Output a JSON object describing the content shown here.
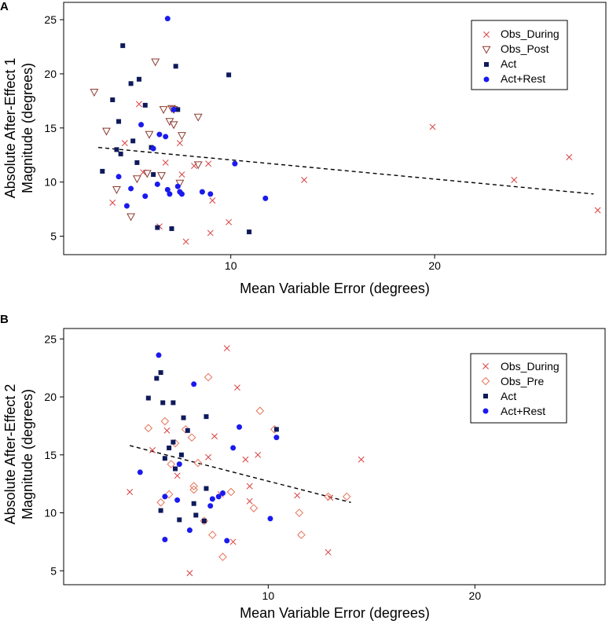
{
  "chart_data": [
    {
      "panel": "A",
      "type": "scatter",
      "xlabel": "Mean Variable Error (degrees)",
      "ylabel_lines": [
        "Absolute After-Effect 1",
        "Magnitude (degrees)"
      ],
      "xlim": [
        1.8,
        28.4
      ],
      "ylim": [
        3.3,
        26.6
      ],
      "xticks": [
        10,
        20
      ],
      "yticks": [
        5,
        10,
        15,
        20,
        25
      ],
      "legend_position": "top-right",
      "trend_line": {
        "x": [
          3.5,
          27.8
        ],
        "y": [
          13.2,
          8.9
        ]
      },
      "series": [
        {
          "name": "Obs_During",
          "marker": "x",
          "color": "#d94040",
          "points": [
            [
              4.2,
              8.1
            ],
            [
              4.8,
              13.6
            ],
            [
              5.5,
              17.2
            ],
            [
              5.7,
              10.9
            ],
            [
              6.5,
              5.9
            ],
            [
              6.8,
              11.8
            ],
            [
              7.5,
              13.6
            ],
            [
              7.6,
              10.7
            ],
            [
              7.8,
              4.5
            ],
            [
              8.2,
              11.5
            ],
            [
              8.9,
              11.7
            ],
            [
              9.0,
              5.3
            ],
            [
              9.1,
              8.3
            ],
            [
              9.9,
              6.3
            ],
            [
              13.6,
              10.2
            ],
            [
              19.9,
              15.1
            ],
            [
              23.9,
              10.2
            ],
            [
              26.6,
              12.3
            ],
            [
              28.0,
              7.4
            ]
          ]
        },
        {
          "name": "Obs_Post",
          "marker": "triangle-down",
          "color": "#8b3a2e",
          "points": [
            [
              3.3,
              18.3
            ],
            [
              3.9,
              14.7
            ],
            [
              4.4,
              9.3
            ],
            [
              5.1,
              6.8
            ],
            [
              5.4,
              10.3
            ],
            [
              5.9,
              10.8
            ],
            [
              6.0,
              14.4
            ],
            [
              6.3,
              21.1
            ],
            [
              6.6,
              10.6
            ],
            [
              6.7,
              16.7
            ],
            [
              7.0,
              15.6
            ],
            [
              7.1,
              16.8
            ],
            [
              7.2,
              16.7
            ],
            [
              7.2,
              15.3
            ],
            [
              7.5,
              9.9
            ],
            [
              7.6,
              14.3
            ],
            [
              8.4,
              16.0
            ],
            [
              8.4,
              11.6
            ]
          ]
        },
        {
          "name": "Act",
          "marker": "square",
          "color": "#0f1a5c",
          "points": [
            [
              3.7,
              11.0
            ],
            [
              4.2,
              17.6
            ],
            [
              4.5,
              15.6
            ],
            [
              4.6,
              12.6
            ],
            [
              4.7,
              22.6
            ],
            [
              5.1,
              19.1
            ],
            [
              5.2,
              13.8
            ],
            [
              5.4,
              11.8
            ],
            [
              5.5,
              19.5
            ],
            [
              5.8,
              17.1
            ],
            [
              6.1,
              13.2
            ],
            [
              6.2,
              10.7
            ],
            [
              6.4,
              5.8
            ],
            [
              7.1,
              5.7
            ],
            [
              7.3,
              20.7
            ],
            [
              7.4,
              16.7
            ],
            [
              9.9,
              19.9
            ],
            [
              10.9,
              5.4
            ],
            [
              4.4,
              13.0
            ]
          ]
        },
        {
          "name": "Act+Rest",
          "marker": "circle",
          "color": "#1a1aee",
          "points": [
            [
              4.5,
              10.5
            ],
            [
              4.9,
              7.8
            ],
            [
              5.1,
              9.4
            ],
            [
              5.6,
              15.3
            ],
            [
              5.8,
              8.7
            ],
            [
              6.2,
              13.1
            ],
            [
              6.4,
              9.8
            ],
            [
              6.5,
              14.4
            ],
            [
              6.8,
              14.2
            ],
            [
              6.9,
              25.1
            ],
            [
              6.9,
              9.3
            ],
            [
              7.0,
              8.9
            ],
            [
              7.2,
              16.7
            ],
            [
              7.4,
              9.6
            ],
            [
              7.5,
              9.1
            ],
            [
              7.6,
              8.9
            ],
            [
              8.6,
              9.1
            ],
            [
              9.0,
              8.9
            ],
            [
              10.2,
              11.7
            ],
            [
              11.7,
              8.5
            ]
          ]
        }
      ]
    },
    {
      "panel": "B",
      "type": "scatter",
      "xlabel": "Mean Variable Error (degrees)",
      "ylabel_lines": [
        "Absolute After-Effect 2",
        "Magnitude (degrees)"
      ],
      "xlim": [
        0.1,
        26.3
      ],
      "ylim": [
        3.8,
        25.9
      ],
      "xticks": [
        10,
        20
      ],
      "yticks": [
        5,
        10,
        15,
        20,
        25
      ],
      "legend_position": "top-right",
      "trend_line": {
        "x": [
          3.3,
          14.0
        ],
        "y": [
          15.8,
          10.9
        ]
      },
      "series": [
        {
          "name": "Obs_During",
          "marker": "x",
          "color": "#d94040",
          "points": [
            [
              3.3,
              11.8
            ],
            [
              4.4,
              15.4
            ],
            [
              5.1,
              17.1
            ],
            [
              5.6,
              13.2
            ],
            [
              6.2,
              4.8
            ],
            [
              7.1,
              14.8
            ],
            [
              7.4,
              16.6
            ],
            [
              7.7,
              11.6
            ],
            [
              8.0,
              24.2
            ],
            [
              8.3,
              7.5
            ],
            [
              8.5,
              20.8
            ],
            [
              8.9,
              14.6
            ],
            [
              9.1,
              12.3
            ],
            [
              9.1,
              11.0
            ],
            [
              9.5,
              15.0
            ],
            [
              11.4,
              11.5
            ],
            [
              12.9,
              6.6
            ],
            [
              14.5,
              14.6
            ],
            [
              13.0,
              11.3
            ]
          ]
        },
        {
          "name": "Obs_Pre",
          "marker": "diamond",
          "color": "#e8735a",
          "points": [
            [
              4.2,
              17.3
            ],
            [
              4.8,
              10.9
            ],
            [
              5.0,
              17.9
            ],
            [
              5.2,
              11.6
            ],
            [
              5.3,
              14.2
            ],
            [
              6.0,
              17.2
            ],
            [
              6.3,
              16.5
            ],
            [
              6.4,
              12.3
            ],
            [
              6.4,
              12.0
            ],
            [
              6.6,
              14.3
            ],
            [
              6.9,
              9.3
            ],
            [
              7.1,
              21.7
            ],
            [
              7.3,
              8.1
            ],
            [
              7.8,
              6.2
            ],
            [
              8.2,
              11.8
            ],
            [
              9.3,
              10.4
            ],
            [
              9.6,
              18.8
            ],
            [
              10.3,
              17.2
            ],
            [
              11.5,
              10.0
            ],
            [
              11.6,
              8.1
            ],
            [
              12.9,
              11.4
            ],
            [
              13.8,
              11.4
            ],
            [
              5.5,
              16.0
            ]
          ]
        },
        {
          "name": "Act",
          "marker": "square",
          "color": "#0f1a5c",
          "points": [
            [
              4.2,
              19.9
            ],
            [
              4.6,
              21.6
            ],
            [
              4.8,
              22.1
            ],
            [
              4.8,
              10.2
            ],
            [
              4.9,
              19.5
            ],
            [
              5.2,
              15.6
            ],
            [
              5.4,
              19.5
            ],
            [
              5.4,
              16.1
            ],
            [
              5.5,
              13.8
            ],
            [
              5.7,
              9.4
            ],
            [
              5.8,
              15.0
            ],
            [
              5.9,
              18.2
            ],
            [
              6.1,
              17.1
            ],
            [
              6.4,
              10.8
            ],
            [
              6.5,
              9.8
            ],
            [
              6.9,
              9.3
            ],
            [
              7.0,
              18.3
            ],
            [
              7.0,
              12.1
            ],
            [
              5.0,
              14.7
            ],
            [
              10.4,
              17.2
            ]
          ]
        },
        {
          "name": "Act+Rest",
          "marker": "circle",
          "color": "#1a1aee",
          "points": [
            [
              3.8,
              13.5
            ],
            [
              4.7,
              23.6
            ],
            [
              5.0,
              11.4
            ],
            [
              5.0,
              7.7
            ],
            [
              5.7,
              14.2
            ],
            [
              6.2,
              8.5
            ],
            [
              6.4,
              21.1
            ],
            [
              7.2,
              10.6
            ],
            [
              7.3,
              11.2
            ],
            [
              7.6,
              11.4
            ],
            [
              7.8,
              11.7
            ],
            [
              8.0,
              7.6
            ],
            [
              8.3,
              15.6
            ],
            [
              8.6,
              17.4
            ],
            [
              10.1,
              9.5
            ],
            [
              10.4,
              16.5
            ],
            [
              5.6,
              11.1
            ]
          ]
        }
      ]
    }
  ]
}
